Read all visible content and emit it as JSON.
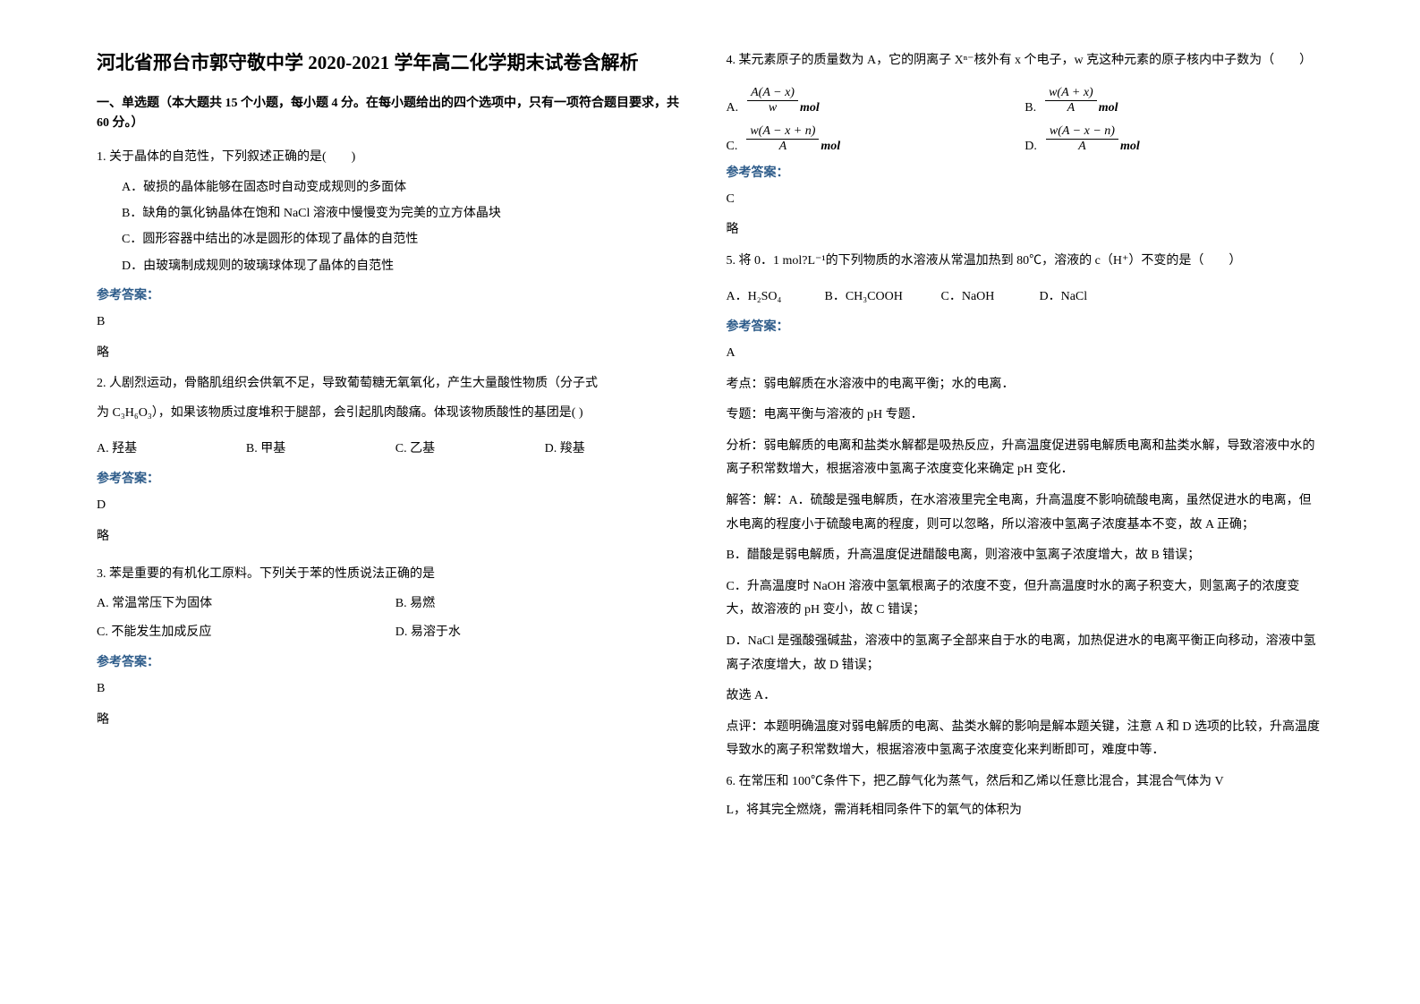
{
  "doc_title": "河北省邢台市郭守敬中学 2020-2021 学年高二化学期末试卷含解析",
  "section1_head": "一、单选题（本大题共 15 个小题，每小题 4 分。在每小题给出的四个选项中，只有一项符合题目要求，共 60 分。）",
  "ans_label": "参考答案：",
  "lue": "略",
  "q1": {
    "stem": "1. 关于晶体的自范性，下列叙述正确的是(　　)",
    "a": "A．破损的晶体能够在固态时自动变成规则的多面体",
    "b": "B．缺角的氯化钠晶体在饱和 NaCl 溶液中慢慢变为完美的立方体晶块",
    "c": "C．圆形容器中结出的冰是圆形的体现了晶体的自范性",
    "d": "D．由玻璃制成规则的玻璃球体现了晶体的自范性",
    "ans": "B"
  },
  "q2": {
    "stem1": "2. 人剧烈运动，骨骼肌组织会供氧不足，导致葡萄糖无氧氧化，产生大量酸性物质（分子式",
    "stem2": "为 C₃H₆O₃），如果该物质过度堆积于腿部，会引起肌肉酸痛。体现该物质酸性的基团是(  )",
    "a": "A. 羟基",
    "b": "B. 甲基",
    "c": "C. 乙基",
    "d": "D. 羧基",
    "ans": "D"
  },
  "q3": {
    "stem": "3. 苯是重要的有机化工原料。下列关于苯的性质说法正确的是",
    "a": "A. 常温常压下为固体",
    "b": "B. 易燃",
    "c": "C. 不能发生加成反应",
    "d": "D. 易溶于水",
    "ans": "B"
  },
  "q4": {
    "stem": "4. 某元素原子的质量数为 A，它的阴离子 Xⁿ⁻核外有 x 个电子，w 克这种元素的原子核内中子数为（　　）",
    "a_label": "A.",
    "a_num": "A(A − x)",
    "a_den": "w",
    "a_unit": "mol",
    "b_label": "B.",
    "b_num": "w(A + x)",
    "b_den": "A",
    "b_unit": "mol",
    "c_label": "C.",
    "c_num": "w(A − x + n)",
    "c_den": "A",
    "c_unit": "mol",
    "d_label": "D.",
    "d_num": "w(A − x − n)",
    "d_den": "A",
    "d_unit": "mol",
    "ans": "C"
  },
  "q5": {
    "stem": "5. 将 0．1 mol?L⁻¹的下列物质的水溶液从常温加热到 80℃，溶液的 c（H⁺）不变的是（　　）",
    "a": "A．H₂SO₄",
    "b": "B．CH₃COOH",
    "c": "C．NaOH",
    "d": "D．NaCl",
    "ans": "A",
    "kd": "考点：弱电解质在水溶液中的电离平衡；水的电离．",
    "zt": "专题：电离平衡与溶液的 pH 专题．",
    "fx1": "分析：弱电解质的电离和盐类水解都是吸热反应，升高温度促进弱电解质电离和盐类水解，导致溶液中水的离子积常数增大，根据溶液中氢离子浓度变化来确定 pH 变化．",
    "jda1": "解答：解：A．硫酸是强电解质，在水溶液里完全电离，升高温度不影响硫酸电离，虽然促进水的电离，但水电离的程度小于硫酸电离的程度，则可以忽略，所以溶液中氢离子浓度基本不变，故 A 正确；",
    "jda2": "B．醋酸是弱电解质，升高温度促进醋酸电离，则溶液中氢离子浓度增大，故 B 错误；",
    "jda3": "C．升高温度时 NaOH 溶液中氢氧根离子的浓度不变，但升高温度时水的离子积变大，则氢离子的浓度变大，故溶液的 pH 变小，故 C 错误；",
    "jda4": "D．NaCl 是强酸强碱盐，溶液中的氢离子全部来自于水的电离，加热促进水的电离平衡正向移动，溶液中氢离子浓度增大，故 D 错误；",
    "gx": "故选 A．",
    "dp": "点评：本题明确温度对弱电解质的电离、盐类水解的影响是解本题关键，注意 A 和 D 选项的比较，升高温度导致水的离子积常数增大，根据溶液中氢离子浓度变化来判断即可，难度中等．"
  },
  "q6": {
    "stem1": "6. 在常压和 100℃条件下，把乙醇气化为蒸气，然后和乙烯以任意比混合，其混合气体为 V",
    "stem2": "L，将其完全燃烧，需消耗相同条件下的氧气的体积为"
  }
}
